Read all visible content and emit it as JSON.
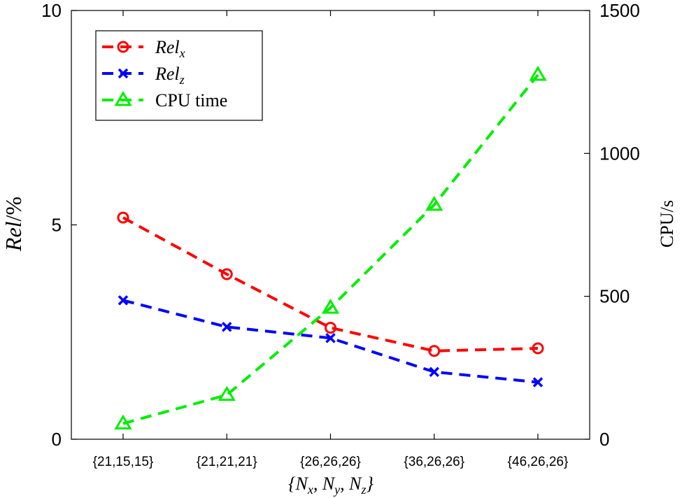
{
  "chart_data": {
    "type": "line",
    "categories": [
      "{21,15,15}",
      "{21,21,21}",
      "{26,26,26}",
      "{36,26,26}",
      "{46,26,26}"
    ],
    "xlabel": {
      "base": "{N",
      "parts": [
        [
          "x",
          ", N"
        ],
        [
          "y",
          ", N"
        ],
        [
          "z",
          "}"
        ]
      ]
    },
    "ylabel_left": {
      "base": "Rel",
      "suffix": "/%"
    },
    "ylabel_right": "CPU/s",
    "ylim_left": [
      0,
      10
    ],
    "ylim_right": [
      0,
      1500
    ],
    "yticks_left": [
      0,
      5,
      10
    ],
    "yticks_right": [
      0,
      500,
      1000,
      1500
    ],
    "grid": false,
    "legend_position": "top-left",
    "series": [
      {
        "name": "Rel",
        "sub": "x",
        "axis": "left",
        "color": "#ff0000",
        "marker": "circle",
        "values": [
          5.17,
          3.85,
          2.6,
          2.06,
          2.12
        ]
      },
      {
        "name": "Rel",
        "sub": "z",
        "axis": "left",
        "color": "#0000ff",
        "marker": "x",
        "values": [
          3.24,
          2.62,
          2.36,
          1.57,
          1.33
        ]
      },
      {
        "name": "CPU time",
        "sub": "",
        "axis": "right",
        "color": "#00ee00",
        "marker": "triangle",
        "values": [
          55,
          155,
          460,
          820,
          1275
        ]
      }
    ]
  }
}
